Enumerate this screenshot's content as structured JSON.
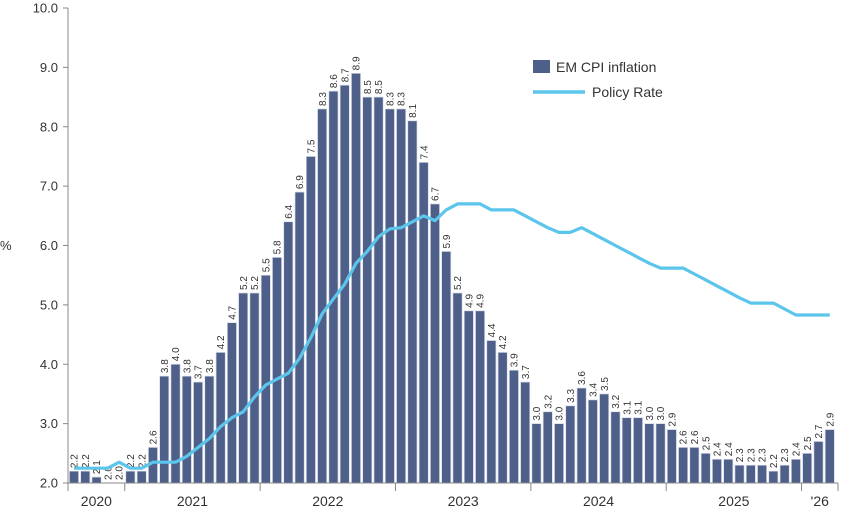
{
  "chart_data": {
    "type": "bar",
    "title": "",
    "xlabel": "",
    "ylabel": "%",
    "ylim": [
      2.0,
      10.0
    ],
    "yticks": [
      "2.0",
      "3.0",
      "4.0",
      "5.0",
      "6.0",
      "7.0",
      "8.0",
      "9.0",
      "10.0"
    ],
    "grid": false,
    "legend_position": "top-right",
    "x_tick_labels": [
      "2020",
      "2021",
      "2022",
      "2023",
      "2024",
      "2025",
      "'26"
    ],
    "categories": [
      "2020-08",
      "2020-09",
      "2020-10",
      "2020-11",
      "2020-12",
      "2021-01",
      "2021-02",
      "2021-03",
      "2021-04",
      "2021-05",
      "2021-06",
      "2021-07",
      "2021-08",
      "2021-09",
      "2021-10",
      "2021-11",
      "2021-12",
      "2022-01",
      "2022-02",
      "2022-03",
      "2022-04",
      "2022-05",
      "2022-06",
      "2022-07",
      "2022-08",
      "2022-09",
      "2022-10",
      "2022-11",
      "2022-12",
      "2023-01",
      "2023-02",
      "2023-03",
      "2023-04",
      "2023-05",
      "2023-06",
      "2023-07",
      "2023-08",
      "2023-09",
      "2023-10",
      "2023-11",
      "2023-12",
      "2024-01",
      "2024-02",
      "2024-03",
      "2024-04",
      "2024-05",
      "2024-06",
      "2024-07",
      "2024-08",
      "2024-09",
      "2024-10",
      "2024-11",
      "2024-12",
      "2025-01",
      "2025-02",
      "2025-03",
      "2025-04",
      "2025-05",
      "2025-06",
      "2025-07",
      "2025-08",
      "2025-09",
      "2025-10",
      "2025-11",
      "2025-12",
      "2026-01",
      "2026-02",
      "2026-03"
    ],
    "series": [
      {
        "name": "EM CPI inflation",
        "type": "bar",
        "color": "#4e6089",
        "values": [
          2.2,
          2.2,
          2.1,
          2.0,
          2.0,
          2.2,
          2.2,
          2.6,
          3.8,
          4.0,
          3.8,
          3.7,
          3.8,
          4.2,
          4.7,
          5.2,
          5.2,
          5.5,
          5.8,
          6.4,
          6.9,
          7.5,
          8.3,
          8.6,
          8.7,
          8.9,
          8.5,
          8.5,
          8.3,
          8.3,
          8.1,
          7.4,
          6.7,
          5.9,
          5.2,
          4.9,
          4.9,
          4.4,
          4.2,
          3.9,
          3.7,
          3.0,
          3.2,
          3.0,
          3.3,
          3.6,
          3.4,
          3.5,
          3.2,
          3.1,
          3.1,
          3.0,
          3.0,
          2.9,
          2.6,
          2.6,
          2.5,
          2.4,
          2.4,
          2.3,
          2.3,
          2.3,
          2.2,
          2.3,
          2.4,
          2.5,
          2.7,
          2.9
        ]
      },
      {
        "name": "Policy Rate",
        "type": "line",
        "color": "#5cc5ec",
        "values": [
          2.25,
          2.25,
          2.25,
          2.25,
          2.35,
          2.25,
          2.25,
          2.35,
          2.35,
          2.35,
          2.45,
          2.6,
          2.75,
          2.95,
          3.1,
          3.2,
          3.45,
          3.65,
          3.75,
          3.85,
          4.1,
          4.45,
          4.85,
          5.1,
          5.35,
          5.7,
          5.9,
          6.15,
          6.28,
          6.3,
          6.4,
          6.5,
          6.42,
          6.6,
          6.7,
          6.7,
          6.7,
          6.6,
          6.6,
          6.6,
          6.5,
          6.4,
          6.3,
          6.22,
          6.22,
          6.3,
          6.2,
          6.1,
          6.0,
          5.9,
          5.8,
          5.7,
          5.62,
          5.62,
          5.62,
          5.52,
          5.42,
          5.32,
          5.22,
          5.12,
          5.03,
          5.03,
          5.03,
          4.93,
          4.83,
          4.83,
          4.83,
          4.83
        ]
      }
    ]
  }
}
